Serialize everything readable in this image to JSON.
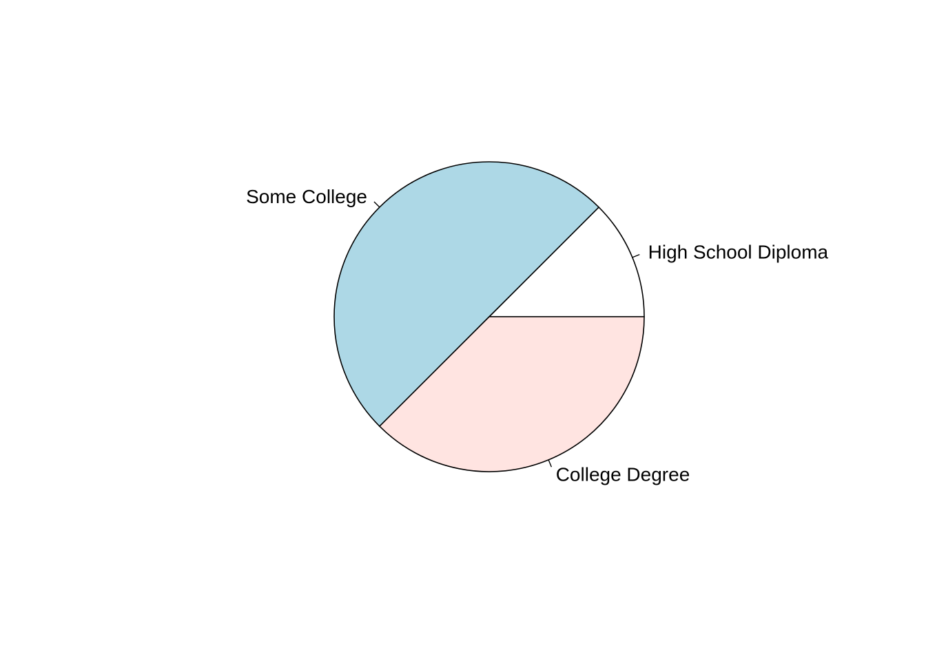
{
  "chart_data": {
    "type": "pie",
    "title": "",
    "direction": "counterclockwise",
    "start": "3 o'clock",
    "labels": [
      "High School Diploma",
      "Some College",
      "College Degree"
    ],
    "values": [
      12.5,
      50,
      37.5
    ],
    "colors": [
      "#ffffff",
      "#add8e6",
      "#ffe4e1"
    ],
    "border_color": "#000000",
    "legend": "none"
  }
}
